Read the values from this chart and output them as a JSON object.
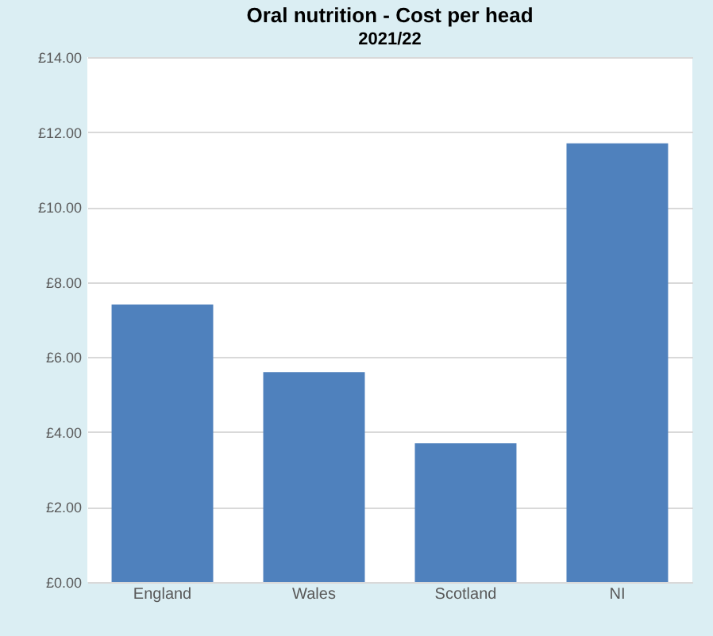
{
  "chart_data": {
    "type": "bar",
    "title": "Oral nutrition - Cost per head",
    "subtitle": "2021/22",
    "categories": [
      "England",
      "Wales",
      "Scotland",
      "NI"
    ],
    "values": [
      7.4,
      5.6,
      3.7,
      11.7
    ],
    "color": "#4f81bd",
    "ylim": [
      0,
      14
    ],
    "yticks": [
      {
        "value": 0,
        "label": "£0.00"
      },
      {
        "value": 2,
        "label": "£2.00"
      },
      {
        "value": 4,
        "label": "£4.00"
      },
      {
        "value": 6,
        "label": "£6.00"
      },
      {
        "value": 8,
        "label": "£8.00"
      },
      {
        "value": 10,
        "label": "£10.00"
      },
      {
        "value": 12,
        "label": "£12.00"
      },
      {
        "value": 14,
        "label": "£14.00"
      }
    ],
    "grid": "y"
  }
}
